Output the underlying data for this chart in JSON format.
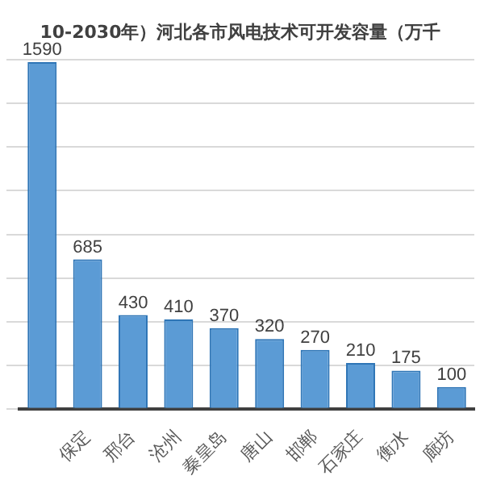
{
  "chart_data": {
    "type": "bar",
    "title": "10-2030年）河北各市风电技术可开发容量（万千",
    "categories": [
      null,
      "保定",
      "邢台",
      "沧州",
      "秦皇岛",
      "唐山",
      "邯郸",
      "石家庄",
      "衡水",
      "廊坊"
    ],
    "values": [
      1590,
      685,
      430,
      410,
      370,
      320,
      270,
      210,
      175,
      100
    ],
    "color": "#5b9bd5",
    "data_labels": true,
    "grid": "y",
    "tick_labels": "x"
  }
}
